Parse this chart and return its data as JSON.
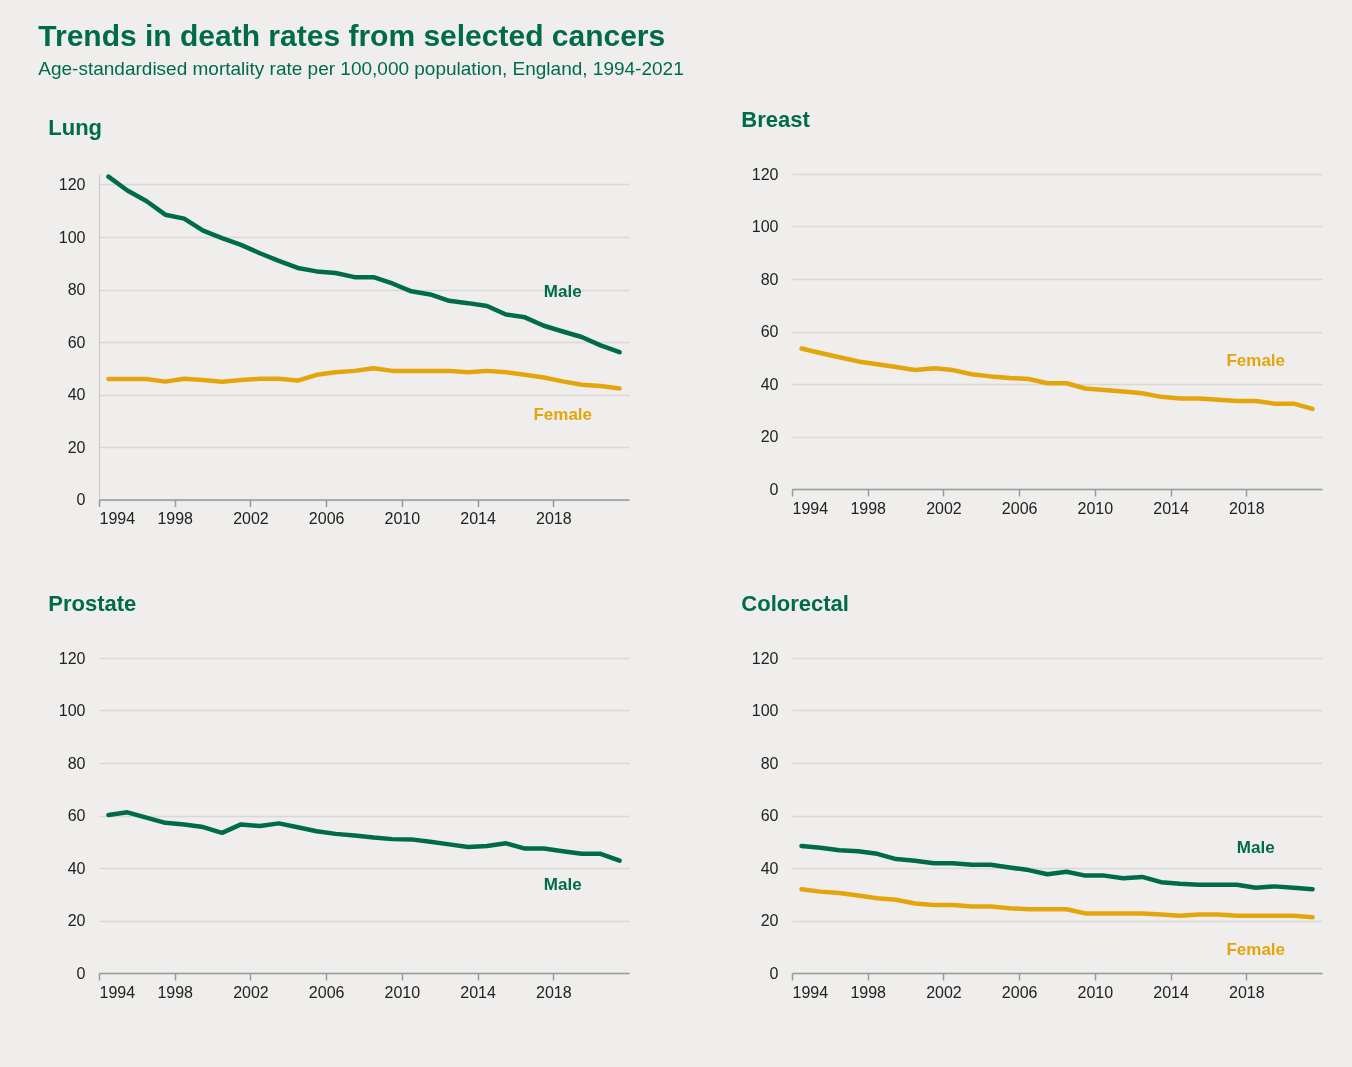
{
  "chart_data": [
    {
      "type": "other",
      "title": "Trends in death rates from selected cancers",
      "subtitle": "Age-standardised mortality rate per 100,000 population, England, 1994-2021"
    },
    {
      "type": "line",
      "title": "Lung",
      "x": [
        1994.5,
        1995.5,
        1996.5,
        1997.5,
        1998.5,
        1999.5,
        2000.5,
        2001.5,
        2002.5,
        2003.5,
        2004.5,
        2005.5,
        2006.5,
        2007.5,
        2008.5,
        2009.5,
        2010.5,
        2011.5,
        2012.5,
        2013.5,
        2014.5,
        2015.5,
        2016.5,
        2017.5,
        2018.5,
        2019.5,
        2020.5,
        2021.5
      ],
      "xlim": [
        1994,
        2022
      ],
      "xticks": [
        1994,
        1998,
        2002,
        2006,
        2010,
        2014,
        2018
      ],
      "ylim": [
        0,
        124
      ],
      "yticks": [
        0,
        20,
        40,
        60,
        80,
        100,
        120
      ],
      "grid": "y",
      "line_style": "solid",
      "series": [
        {
          "name": "Male",
          "color": "#006b4b",
          "values": [
            123,
            117.7,
            113.7,
            108.5,
            107,
            102.4,
            99.6,
            97,
            93.8,
            90.9,
            88.2,
            86.9,
            86.3,
            84.7,
            84.7,
            82.3,
            79.3,
            78.1,
            75.7,
            74.8,
            73.7,
            70.5,
            69.4,
            66.2,
            64,
            61.9,
            58.7,
            56.1
          ]
        },
        {
          "name": "Female",
          "color": "#e3a50b",
          "values": [
            45.9,
            45.9,
            45.9,
            44.9,
            46,
            45.5,
            44.9,
            45.5,
            46,
            46,
            45.3,
            47.5,
            48.5,
            49,
            50,
            49,
            49,
            49,
            49,
            48.5,
            49,
            48.5,
            47.5,
            46.5,
            45,
            43.7,
            43.2,
            42.3
          ]
        }
      ]
    },
    {
      "type": "line",
      "title": "Breast",
      "x": [
        1994.5,
        1995.5,
        1996.5,
        1997.5,
        1998.5,
        1999.5,
        2000.5,
        2001.5,
        2002.5,
        2003.5,
        2004.5,
        2005.5,
        2006.5,
        2007.5,
        2008.5,
        2009.5,
        2010.5,
        2011.5,
        2012.5,
        2013.5,
        2014.5,
        2015.5,
        2016.5,
        2017.5,
        2018.5,
        2019.5,
        2020.5,
        2021.5
      ],
      "xlim": [
        1994,
        2022
      ],
      "xticks": [
        1994,
        1998,
        2002,
        2006,
        2010,
        2014,
        2018
      ],
      "ylim": [
        0,
        120
      ],
      "yticks": [
        0,
        20,
        40,
        60,
        80,
        100,
        120
      ],
      "grid": "y",
      "line_style": "solid",
      "series": [
        {
          "name": "Female",
          "color": "#e3a50b",
          "values": [
            53.5,
            51.8,
            50.2,
            48.6,
            47.5,
            46.5,
            45.3,
            46,
            45.3,
            43.7,
            42.9,
            42.3,
            41.9,
            40.3,
            40.3,
            38.3,
            37.7,
            37.1,
            36.5,
            35.1,
            34.5,
            34.5,
            34,
            33.5,
            33.5,
            32.5,
            32.5,
            30.5
          ]
        }
      ]
    },
    {
      "type": "line",
      "title": "Prostate",
      "x": [
        1994.5,
        1995.5,
        1996.5,
        1997.5,
        1998.5,
        1999.5,
        2000.5,
        2001.5,
        2002.5,
        2003.5,
        2004.5,
        2005.5,
        2006.5,
        2007.5,
        2008.5,
        2009.5,
        2010.5,
        2011.5,
        2012.5,
        2013.5,
        2014.5,
        2015.5,
        2016.5,
        2017.5,
        2018.5,
        2019.5,
        2020.5,
        2021.5
      ],
      "xlim": [
        1994,
        2022
      ],
      "xticks": [
        1994,
        1998,
        2002,
        2006,
        2010,
        2014,
        2018
      ],
      "ylim": [
        0,
        120
      ],
      "yticks": [
        0,
        20,
        40,
        60,
        80,
        100,
        120
      ],
      "grid": "y",
      "line_style": "solid",
      "series": [
        {
          "name": "Male",
          "color": "#006b4b",
          "values": [
            60.2,
            61.2,
            59.2,
            57.2,
            56.6,
            55.6,
            53.4,
            56.6,
            56,
            57,
            55.5,
            54,
            53,
            52.4,
            51.6,
            51,
            50.9,
            50,
            49,
            48,
            48.4,
            49.4,
            47.4,
            47.4,
            46.4,
            45.4,
            45.4,
            42.8
          ]
        }
      ]
    },
    {
      "type": "line",
      "title": "Colorectal",
      "x": [
        1994.5,
        1995.5,
        1996.5,
        1997.5,
        1998.5,
        1999.5,
        2000.5,
        2001.5,
        2002.5,
        2003.5,
        2004.5,
        2005.5,
        2006.5,
        2007.5,
        2008.5,
        2009.5,
        2010.5,
        2011.5,
        2012.5,
        2013.5,
        2014.5,
        2015.5,
        2016.5,
        2017.5,
        2018.5,
        2019.5,
        2020.5,
        2021.5
      ],
      "xlim": [
        1994,
        2022
      ],
      "xticks": [
        1994,
        1998,
        2002,
        2006,
        2010,
        2014,
        2018
      ],
      "ylim": [
        0,
        120
      ],
      "yticks": [
        0,
        20,
        40,
        60,
        80,
        100,
        120
      ],
      "grid": "y",
      "line_style": "solid",
      "series": [
        {
          "name": "Male",
          "color": "#006b4b",
          "values": [
            48.4,
            47.7,
            46.8,
            46.4,
            45.4,
            43.4,
            42.8,
            41.8,
            41.8,
            41.2,
            41.2,
            40.2,
            39.2,
            37.6,
            38.6,
            37.1,
            37.1,
            36.1,
            36.6,
            34.6,
            34,
            33.6,
            33.6,
            33.6,
            32.5,
            33,
            32.5,
            31.9
          ]
        },
        {
          "name": "Female",
          "color": "#e3a50b",
          "values": [
            31.9,
            31,
            30.5,
            29.5,
            28.5,
            27.9,
            26.5,
            25.9,
            25.9,
            25.3,
            25.3,
            24.7,
            24.3,
            24.3,
            24.3,
            22.7,
            22.7,
            22.7,
            22.7,
            22.3,
            21.8,
            22.3,
            22.3,
            21.8,
            21.8,
            21.8,
            21.8,
            21.2
          ]
        }
      ]
    }
  ]
}
